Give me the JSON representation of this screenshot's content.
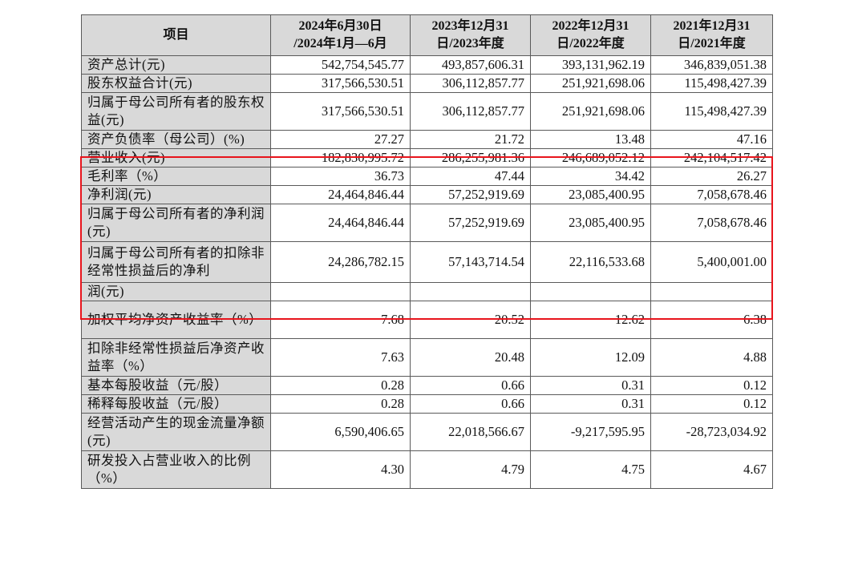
{
  "table": {
    "headers": [
      {
        "line1": "项目",
        "line2": ""
      },
      {
        "line1": "2024年6月30日",
        "line2": "/2024年1月—6月"
      },
      {
        "line1": "2023年12月31",
        "line2": "日/2023年度"
      },
      {
        "line1": "2022年12月31",
        "line2": "日/2022年度"
      },
      {
        "line1": "2021年12月31",
        "line2": "日/2021年度"
      }
    ],
    "rows": [
      {
        "label": "资产总计(元)",
        "values": [
          "542,754,545.77",
          "493,857,606.31",
          "393,131,962.19",
          "346,839,051.38"
        ]
      },
      {
        "label": "股东权益合计(元)",
        "values": [
          "317,566,530.51",
          "306,112,857.77",
          "251,921,698.06",
          "115,498,427.39"
        ]
      },
      {
        "label": "归属于母公司所有者的股东权益(元)",
        "values": [
          "317,566,530.51",
          "306,112,857.77",
          "251,921,698.06",
          "115,498,427.39"
        ]
      },
      {
        "label": "资产负债率（母公司）(%)",
        "values": [
          "27.27",
          "21.72",
          "13.48",
          "47.16"
        ]
      },
      {
        "label": "营业收入(元)",
        "values": [
          "182,830,995.72",
          "286,255,981.36",
          "246,689,052.12",
          "242,104,517.42"
        ]
      },
      {
        "label": "毛利率（%）",
        "values": [
          "36.73",
          "47.44",
          "34.42",
          "26.27"
        ]
      },
      {
        "label": "净利润(元)",
        "values": [
          "24,464,846.44",
          "57,252,919.69",
          "23,085,400.95",
          "7,058,678.46"
        ]
      },
      {
        "label": "归属于母公司所有者的净利润(元)",
        "values": [
          "24,464,846.44",
          "57,252,919.69",
          "23,085,400.95",
          "7,058,678.46"
        ]
      },
      {
        "label": "归属于母公司所有者的扣除非经常性损益后的净利",
        "values": [
          "24,286,782.15",
          "57,143,714.54",
          "22,116,533.68",
          "5,400,001.00"
        ]
      },
      {
        "label": "润(元)",
        "values": [
          "",
          "",
          "",
          ""
        ]
      },
      {
        "label": "加权平均净资产收益率（%）",
        "values": [
          "7.68",
          "20.52",
          "12.62",
          "6.38"
        ]
      },
      {
        "label": "扣除非经常性损益后净资产收益率（%）",
        "values": [
          "7.63",
          "20.48",
          "12.09",
          "4.88"
        ]
      },
      {
        "label": "基本每股收益（元/股）",
        "values": [
          "0.28",
          "0.66",
          "0.31",
          "0.12"
        ]
      },
      {
        "label": "稀释每股收益（元/股）",
        "values": [
          "0.28",
          "0.66",
          "0.31",
          "0.12"
        ]
      },
      {
        "label": "经营活动产生的现金流量净额(元)",
        "values": [
          "6,590,406.65",
          "22,018,566.67",
          "-9,217,595.95",
          "-28,723,034.92"
        ]
      },
      {
        "label": "研发投入占营业收入的比例（%）",
        "values": [
          "4.30",
          "4.79",
          "4.75",
          "4.67"
        ]
      }
    ]
  },
  "colors": {
    "header_bg": "#d9d9d9",
    "label_bg": "#d9d9d9",
    "highlight_border": "#e8141c",
    "grid": "#5a5a5a"
  }
}
